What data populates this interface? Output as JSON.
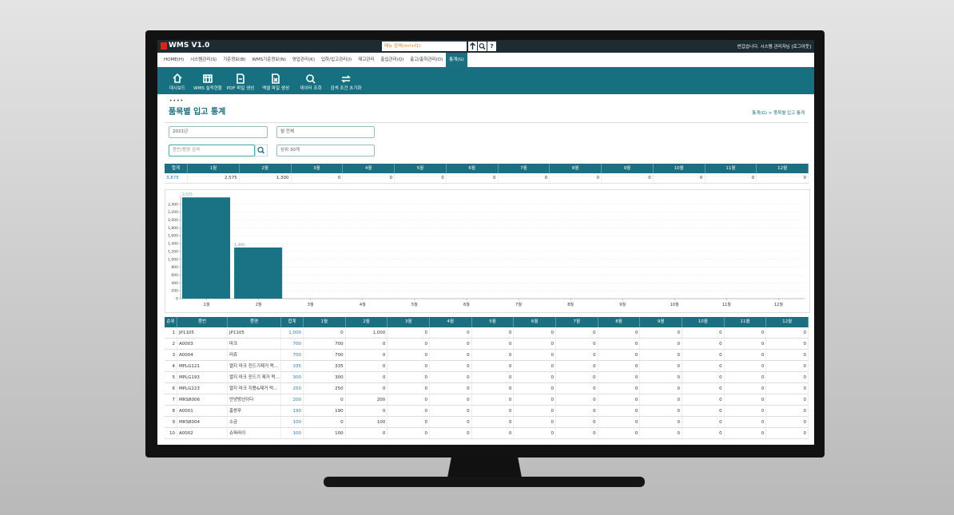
{
  "header": {
    "logo": "WMS V1.0",
    "search": "메뉴 검색(ctrl+f1)",
    "help": "?",
    "greeting": "반갑습니다. 시스템 관리자님 [로그아웃]"
  },
  "menu": [
    "HOME(H)",
    "시스템관리(S)",
    "기준정보(B)",
    "WMS기준정보(N)",
    "영업관리(K)",
    "입하/입고관리(I)",
    "재고관리",
    "출입관리(Q)",
    "출고/출하관리(O)",
    "통계(G)"
  ],
  "toolbar": [
    "대시보드",
    "WMS 실적현황",
    "PDF 파일 생성",
    "엑셀 파일 생성",
    "데이터 조회",
    "검색 조건 초기화"
  ],
  "page": {
    "title": "품목별 입고 통계",
    "breadcrumb": "통계(G) > 품목별 입고 통계"
  },
  "filters": {
    "year": "2021년",
    "month": "월 전체",
    "search_placeholder": "품번/품명 검색",
    "top": "상위 30개"
  },
  "summary": {
    "headers": [
      "합계",
      "1월",
      "2월",
      "3월",
      "4월",
      "5월",
      "6월",
      "7월",
      "8월",
      "9월",
      "10월",
      "11월",
      "12월"
    ],
    "row": [
      "3,875",
      "2,575",
      "1,300",
      "0",
      "0",
      "0",
      "0",
      "0",
      "0",
      "0",
      "0",
      "0",
      "0"
    ]
  },
  "chart_data": {
    "type": "bar",
    "categories": [
      "1월",
      "2월",
      "3월",
      "4월",
      "5월",
      "6월",
      "7월",
      "8월",
      "9월",
      "10월",
      "11월",
      "12월"
    ],
    "values": [
      2575,
      1300,
      0,
      0,
      0,
      0,
      0,
      0,
      0,
      0,
      0,
      0
    ],
    "value_labels": [
      "2,575",
      "1,300",
      null,
      null,
      null,
      null,
      null,
      null,
      null,
      null,
      null,
      null
    ],
    "color": "#1a7285",
    "ylim": [
      0,
      2600
    ],
    "yticks": [
      0,
      200,
      400,
      600,
      800,
      {
        "value": 1000,
        "label": "1,000"
      },
      {
        "value": 1200,
        "label": "1,200"
      },
      {
        "value": 1400,
        "label": "1,400"
      },
      {
        "value": 1600,
        "label": "1,600"
      },
      {
        "value": 1800,
        "label": "1,800"
      },
      {
        "value": 2000,
        "label": "2,000"
      },
      {
        "value": 2200,
        "label": "2,200"
      },
      {
        "value": 2400,
        "label": "2,400"
      }
    ],
    "grid": true
  },
  "table": {
    "headers": [
      "순위",
      "품번",
      "품명",
      "합계",
      "1월",
      "2월",
      "3월",
      "4월",
      "5월",
      "6월",
      "7월",
      "8월",
      "9월",
      "10월",
      "11월",
      "12월"
    ],
    "rows": [
      [
        "1",
        "JP1105",
        "JP1105",
        "1,000",
        "0",
        "1,000",
        "0",
        "0",
        "0",
        "0",
        "0",
        "0",
        "0",
        "0",
        "0",
        "0"
      ],
      [
        "2",
        "A0003",
        "마크",
        "700",
        "700",
        "0",
        "0",
        "0",
        "0",
        "0",
        "0",
        "0",
        "0",
        "0",
        "0",
        "0"
      ],
      [
        "3",
        "A0004",
        "러쥬",
        "700",
        "700",
        "0",
        "0",
        "0",
        "0",
        "0",
        "0",
        "0",
        "0",
        "0",
        "0",
        "0"
      ],
      [
        "4",
        "MPLG121",
        "열지 마크 진드기제거 럭...",
        "335",
        "335",
        "0",
        "0",
        "0",
        "0",
        "0",
        "0",
        "0",
        "0",
        "0",
        "0",
        "0"
      ],
      [
        "5",
        "MPLG193",
        "열지 마크 진드기 제거 럭...",
        "300",
        "300",
        "0",
        "0",
        "0",
        "0",
        "0",
        "0",
        "0",
        "0",
        "0",
        "0",
        "0"
      ],
      [
        "6",
        "MPLG223",
        "열지 마크 지용&제거 럭...",
        "250",
        "250",
        "0",
        "0",
        "0",
        "0",
        "0",
        "0",
        "0",
        "0",
        "0",
        "0",
        "0"
      ],
      [
        "7",
        "MRS8006",
        "안녕방선이다",
        "200",
        "0",
        "200",
        "0",
        "0",
        "0",
        "0",
        "0",
        "0",
        "0",
        "0",
        "0",
        "0"
      ],
      [
        "8",
        "A0001",
        "홈쌍푸",
        "190",
        "190",
        "0",
        "0",
        "0",
        "0",
        "0",
        "0",
        "0",
        "0",
        "0",
        "0",
        "0"
      ],
      [
        "9",
        "MRS8004",
        "소금",
        "100",
        "0",
        "100",
        "0",
        "0",
        "0",
        "0",
        "0",
        "0",
        "0",
        "0",
        "0",
        "0"
      ],
      [
        "10",
        "A0002",
        "슈퍼라이",
        "100",
        "100",
        "0",
        "0",
        "0",
        "0",
        "0",
        "0",
        "0",
        "0",
        "0",
        "0",
        "0"
      ]
    ]
  }
}
